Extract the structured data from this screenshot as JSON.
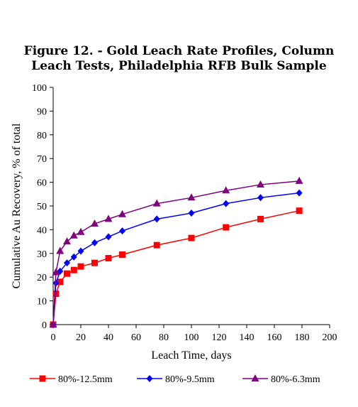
{
  "chart_data": {
    "type": "line",
    "title_line1": "Figure 12. - Gold Leach Rate Profiles, Column",
    "title_line2": "Leach Tests, Philadelphia RFB Bulk Sample",
    "xlabel": "Leach Time, days",
    "ylabel": "Cumulative Au Recovery, % of total",
    "xlim": [
      0,
      200
    ],
    "ylim": [
      0,
      100
    ],
    "xticks": [
      0,
      20,
      40,
      60,
      80,
      100,
      120,
      140,
      160,
      180,
      200
    ],
    "yticks": [
      0,
      10,
      20,
      30,
      40,
      50,
      60,
      70,
      80,
      90,
      100
    ],
    "grid": false,
    "legend_position": "bottom",
    "series": [
      {
        "name": "80%-12.5mm",
        "color": "#ff0000",
        "marker": "square",
        "points": [
          [
            0,
            0
          ],
          [
            2,
            13
          ],
          [
            5,
            18
          ],
          [
            10,
            21.5
          ],
          [
            15,
            23
          ],
          [
            20,
            24.5
          ],
          [
            30,
            26
          ],
          [
            40,
            28
          ],
          [
            50,
            29.5
          ],
          [
            75,
            33.5
          ],
          [
            100,
            36.5
          ],
          [
            125,
            41
          ],
          [
            150,
            44.5
          ],
          [
            178,
            48
          ]
        ]
      },
      {
        "name": "80%-9.5mm",
        "color": "#0000ff",
        "marker": "diamond",
        "points": [
          [
            0,
            0
          ],
          [
            2,
            17.5
          ],
          [
            5,
            22.5
          ],
          [
            10,
            26
          ],
          [
            15,
            28.5
          ],
          [
            20,
            31
          ],
          [
            30,
            34.5
          ],
          [
            40,
            37
          ],
          [
            50,
            39.5
          ],
          [
            75,
            44.5
          ],
          [
            100,
            47
          ],
          [
            125,
            51
          ],
          [
            150,
            53.5
          ],
          [
            178,
            55.5
          ]
        ]
      },
      {
        "name": "80%-6.3mm",
        "color": "#800080",
        "marker": "triangle",
        "points": [
          [
            0,
            0
          ],
          [
            2,
            22
          ],
          [
            5,
            31
          ],
          [
            10,
            35
          ],
          [
            15,
            37.5
          ],
          [
            20,
            39
          ],
          [
            30,
            42.5
          ],
          [
            40,
            44.5
          ],
          [
            50,
            46.5
          ],
          [
            75,
            51
          ],
          [
            100,
            53.5
          ],
          [
            125,
            56.5
          ],
          [
            150,
            59
          ],
          [
            178,
            60.5
          ]
        ]
      }
    ]
  }
}
